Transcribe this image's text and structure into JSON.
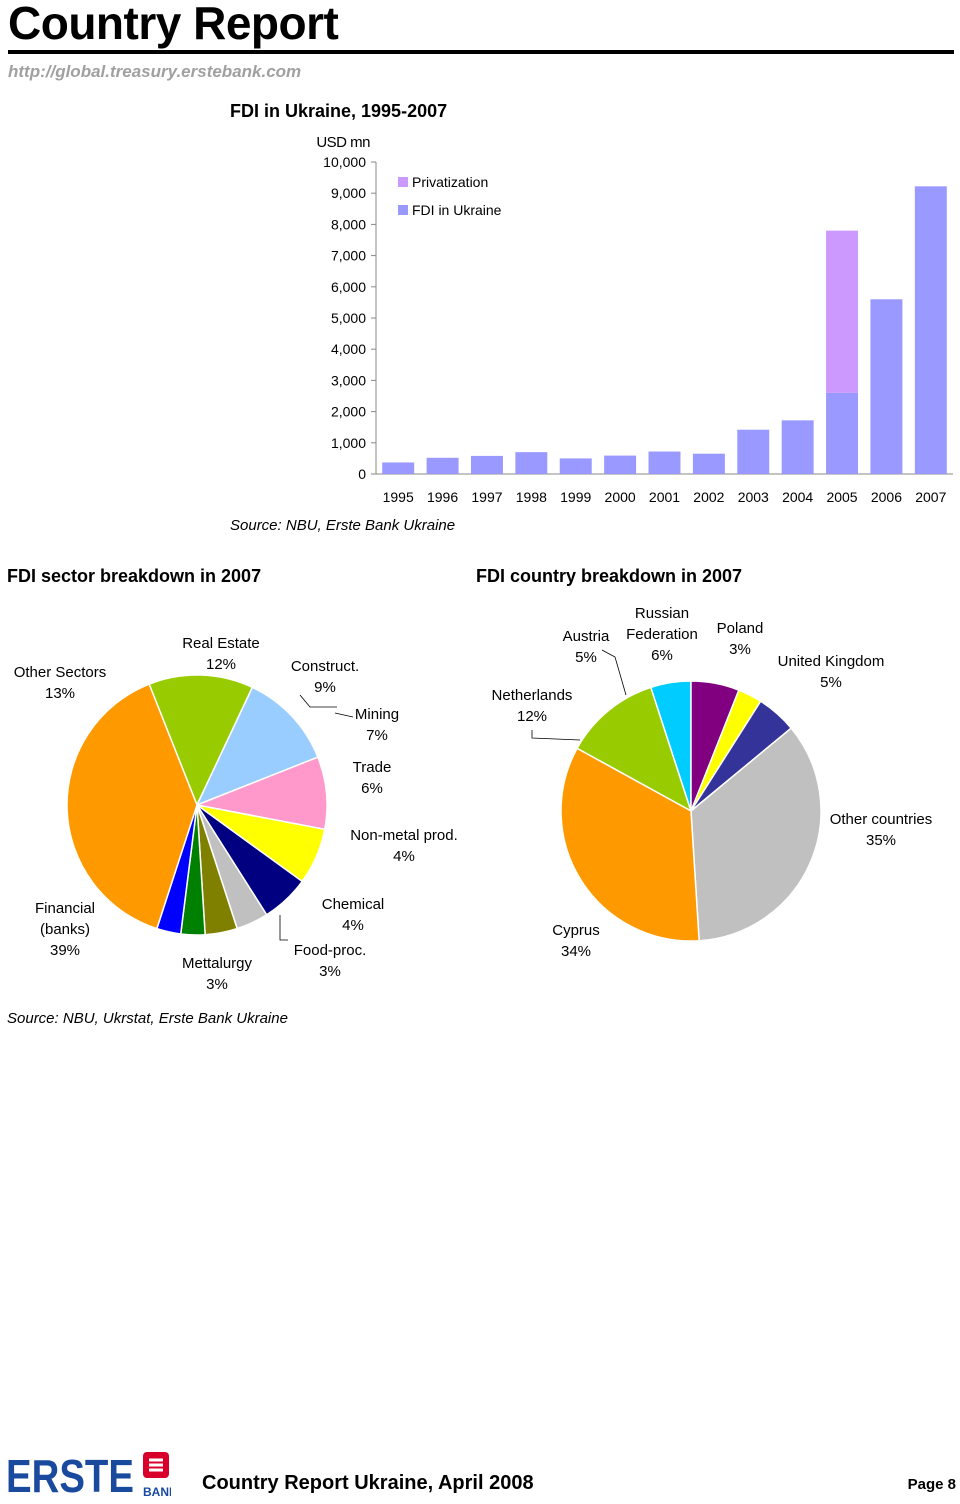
{
  "header": {
    "title": "Country Report",
    "url": "http://global.treasury.erstebank.com"
  },
  "fdi_chart": {
    "title": "FDI in Ukraine, 1995-2007",
    "unit_label": "USD mn",
    "source": "Source: NBU, Erste Bank Ukraine",
    "legend": [
      {
        "label": "Privatization",
        "color": "#cc99ff"
      },
      {
        "label": "FDI in Ukraine",
        "color": "#9999ff"
      }
    ]
  },
  "sector_chart": {
    "title": "FDI sector breakdown in 2007",
    "source": "Source: NBU, Ukrstat, Erste Bank Ukraine"
  },
  "country_chart": {
    "title": "FDI country breakdown in 2007"
  },
  "chart_data": [
    {
      "type": "bar",
      "title": "FDI in Ukraine, 1995-2007",
      "ylabel": "USD mn",
      "ylim": [
        0,
        10000
      ],
      "yticks": [
        0,
        1000,
        2000,
        3000,
        4000,
        5000,
        6000,
        7000,
        8000,
        9000,
        10000
      ],
      "categories": [
        "1995",
        "1996",
        "1997",
        "1998",
        "1999",
        "2000",
        "2001",
        "2002",
        "2003",
        "2004",
        "2005",
        "2006",
        "2007"
      ],
      "stacked": true,
      "legend_position": "top-left",
      "series": [
        {
          "name": "FDI in Ukraine",
          "color": "#9999ff",
          "values": [
            370,
            520,
            580,
            700,
            500,
            590,
            720,
            650,
            1420,
            1720,
            2600,
            5600,
            9220
          ]
        },
        {
          "name": "Privatization",
          "color": "#cc99ff",
          "values": [
            0,
            0,
            0,
            0,
            0,
            0,
            0,
            0,
            0,
            0,
            5200,
            0,
            0
          ]
        }
      ]
    },
    {
      "type": "pie",
      "title": "FDI sector breakdown in 2007",
      "slices": [
        {
          "label": "Other Sectors",
          "label_line2": "13%",
          "value": 13,
          "color": "#99cc00"
        },
        {
          "label": "Real Estate",
          "label_line2": "12%",
          "value": 12,
          "color": "#99ccff"
        },
        {
          "label": "Construct.",
          "label_line2": "9%",
          "value": 9,
          "color": "#ff99cc"
        },
        {
          "label": "Mining",
          "label_line2": "7%",
          "value": 7,
          "color": "#ffff00"
        },
        {
          "label": "Trade",
          "label_line2": "6%",
          "value": 6,
          "color": "#000080"
        },
        {
          "label": "Non-metal prod.",
          "label_line2": "4%",
          "value": 4,
          "color": "#c0c0c0"
        },
        {
          "label": "Chemical",
          "label_line2": "4%",
          "value": 4,
          "color": "#808000"
        },
        {
          "label": "Food-proc.",
          "label_line2": "3%",
          "value": 3,
          "color": "#008000"
        },
        {
          "label": "Mettalurgy",
          "label_line2": "3%",
          "value": 3,
          "color": "#0000ff"
        },
        {
          "label": "Financial (banks)",
          "label_line2": "39%",
          "value": 39,
          "color": "#ff9900"
        }
      ]
    },
    {
      "type": "pie",
      "title": "FDI country breakdown in 2007",
      "slices": [
        {
          "label": "Netherlands",
          "label_line2": "12%",
          "value": 12,
          "color": "#99cc00"
        },
        {
          "label": "Austria",
          "label_line2": "5%",
          "value": 5,
          "color": "#00ccff"
        },
        {
          "label": "Russian Federation",
          "label_line2": "6%",
          "value": 6,
          "color": "#800080"
        },
        {
          "label": "Poland",
          "label_line2": "3%",
          "value": 3,
          "color": "#ffff00"
        },
        {
          "label": "United Kingdom",
          "label_line2": "5%",
          "value": 5,
          "color": "#333399"
        },
        {
          "label": "Other countries",
          "label_line2": "35%",
          "value": 35,
          "color": "#c0c0c0"
        },
        {
          "label": "Cyprus",
          "label_line2": "34%",
          "value": 34,
          "color": "#ff9900"
        }
      ]
    }
  ],
  "footer": {
    "logo_text": "ERSTE",
    "logo_sub": "BANK",
    "title": "Country Report Ukraine, April 2008",
    "page": "Page 8"
  }
}
